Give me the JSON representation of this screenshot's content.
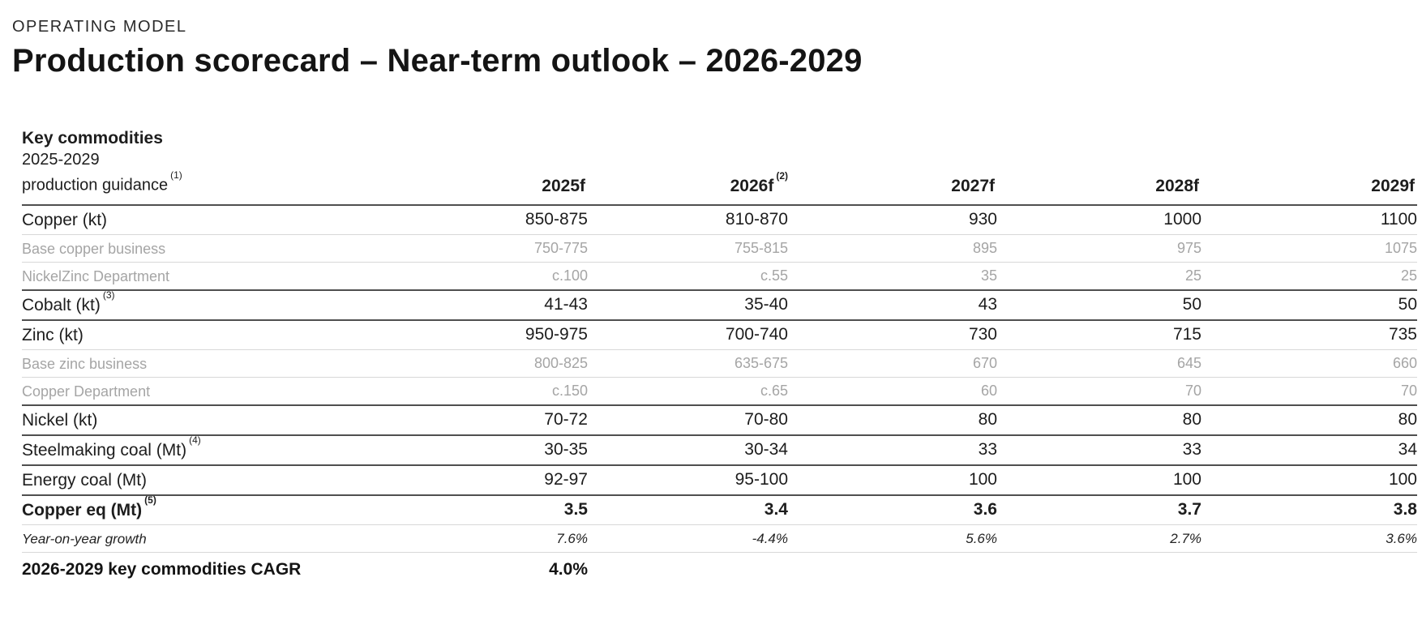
{
  "page": {
    "eyebrow": "OPERATING MODEL",
    "title": "Production scorecard – Near-term outlook – 2026-2029"
  },
  "colors": {
    "text": "#1d1d1d",
    "muted_row_text": "#a5a5a5",
    "rule_dark": "#4f4f4f",
    "rule_light": "#d8d8d8",
    "background": "#ffffff"
  },
  "table": {
    "corner": {
      "line1": "Key commodities",
      "line2": "2025-2029",
      "line3": "production guidance",
      "footnote": "(1)"
    },
    "columns": [
      {
        "label": "2025f",
        "footnote": ""
      },
      {
        "label": "2026f",
        "footnote": "(2)"
      },
      {
        "label": "2027f",
        "footnote": ""
      },
      {
        "label": "2028f",
        "footnote": ""
      },
      {
        "label": "2029f",
        "footnote": ""
      }
    ],
    "rows": [
      {
        "label": "Copper (kt)",
        "footnote": "",
        "values": [
          "850-875",
          "810-870",
          "930",
          "1000",
          "1100"
        ]
      },
      {
        "label": "Base copper business",
        "footnote": "",
        "values": [
          "750-775",
          "755-815",
          "895",
          "975",
          "1075"
        ]
      },
      {
        "label": "NickelZinc Department",
        "footnote": "",
        "values": [
          "c.100",
          "c.55",
          "35",
          "25",
          "25"
        ]
      },
      {
        "label": "Cobalt (kt)",
        "footnote": "(3)",
        "values": [
          "41-43",
          "35-40",
          "43",
          "50",
          "50"
        ]
      },
      {
        "label": "Zinc (kt)",
        "footnote": "",
        "values": [
          "950-975",
          "700-740",
          "730",
          "715",
          "735"
        ]
      },
      {
        "label": "Base zinc business",
        "footnote": "",
        "values": [
          "800-825",
          "635-675",
          "670",
          "645",
          "660"
        ]
      },
      {
        "label": "Copper Department",
        "footnote": "",
        "values": [
          "c.150",
          "c.65",
          "60",
          "70",
          "70"
        ]
      },
      {
        "label": "Nickel (kt)",
        "footnote": "",
        "values": [
          "70-72",
          "70-80",
          "80",
          "80",
          "80"
        ]
      },
      {
        "label": "Steelmaking coal (Mt)",
        "footnote": "(4)",
        "values": [
          "30-35",
          "30-34",
          "33",
          "33",
          "34"
        ]
      },
      {
        "label": "Energy coal (Mt)",
        "footnote": "",
        "values": [
          "92-97",
          "95-100",
          "100",
          "100",
          "100"
        ]
      },
      {
        "label": "Copper eq (Mt)",
        "footnote": "(5)",
        "values": [
          "3.5",
          "3.4",
          "3.6",
          "3.7",
          "3.8"
        ]
      },
      {
        "label": "Year-on-year growth",
        "footnote": "",
        "values": [
          "7.6%",
          "-4.4%",
          "5.6%",
          "2.7%",
          "3.6%"
        ]
      },
      {
        "label": "2026-2029 key commodities CAGR",
        "footnote": "",
        "values": [
          "4.0%",
          "",
          "",
          "",
          ""
        ]
      }
    ]
  }
}
